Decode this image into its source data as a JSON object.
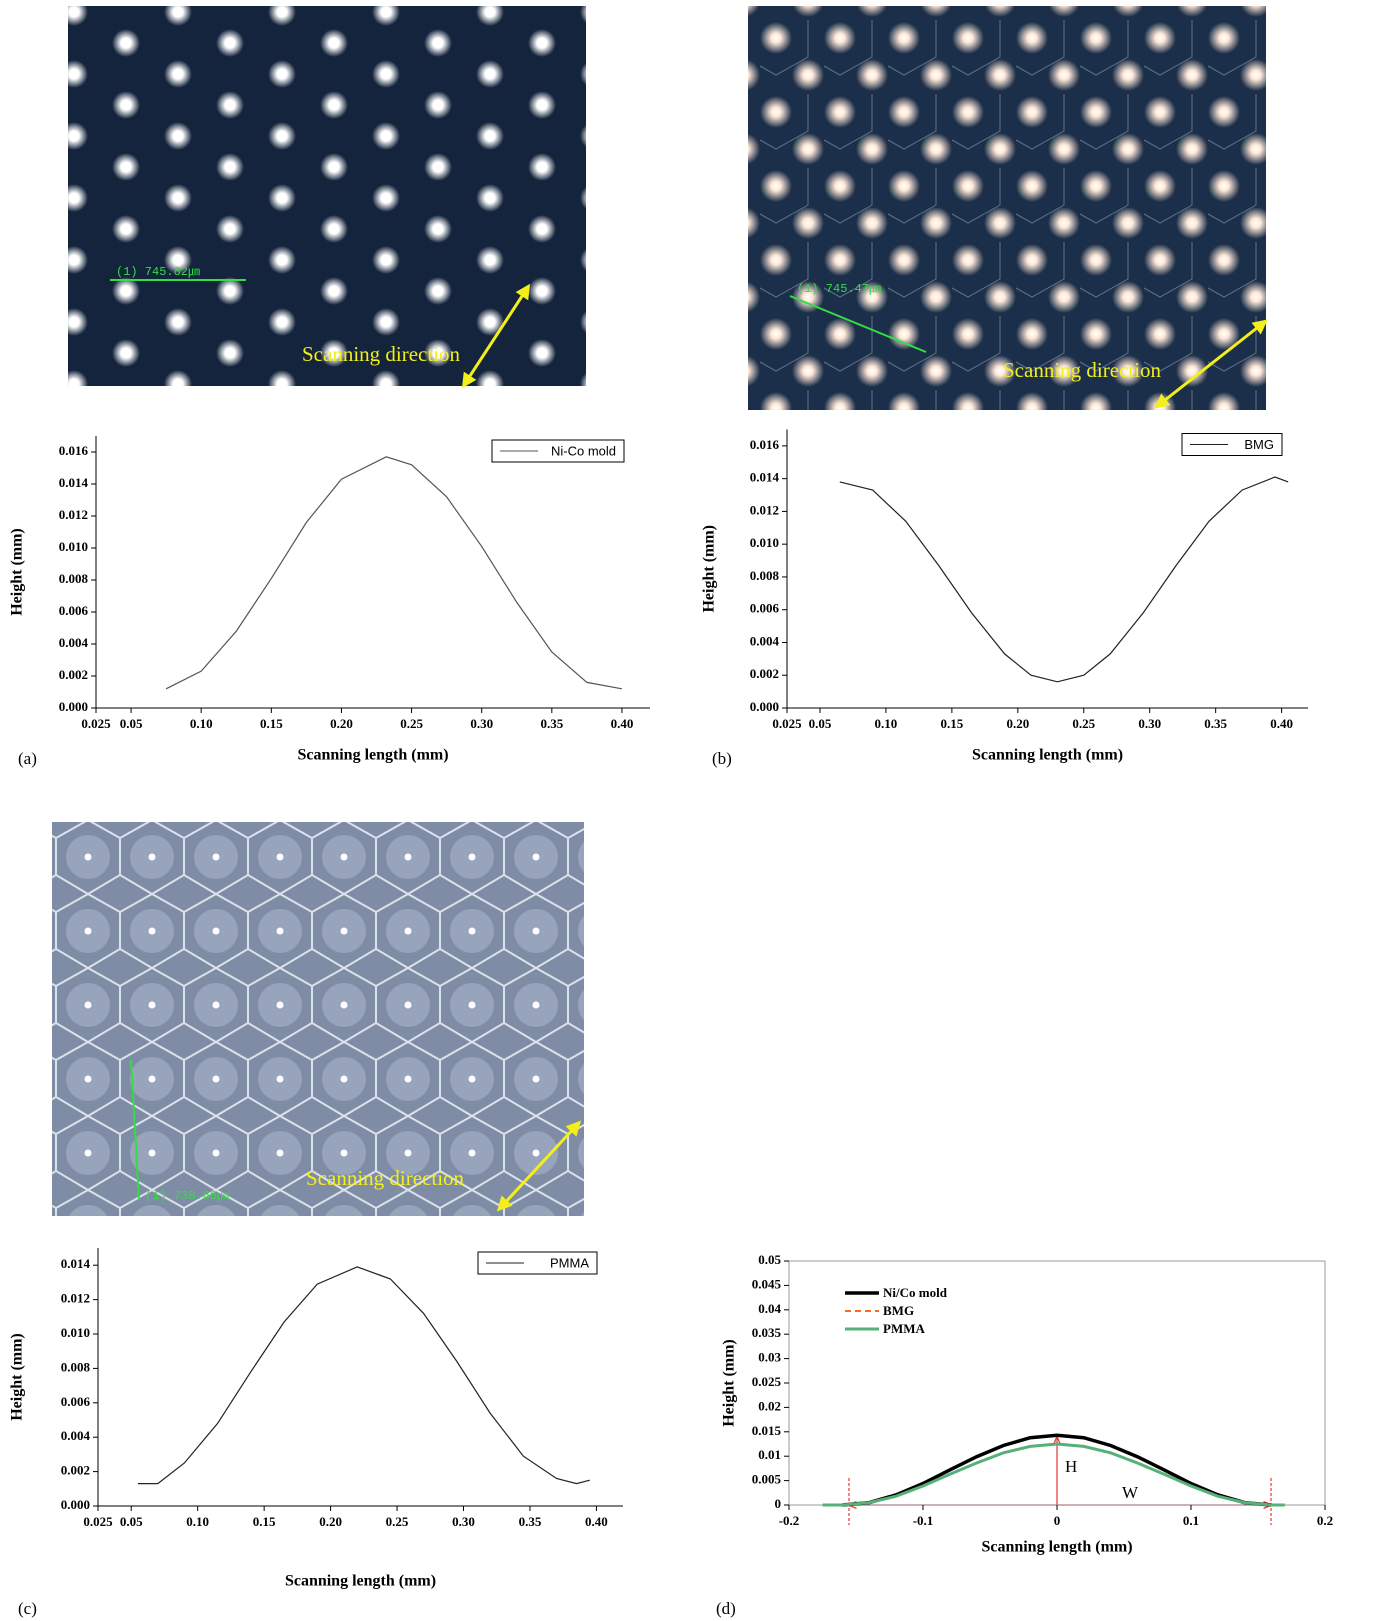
{
  "photos": [
    {
      "measure": "(1) 745.82㎛",
      "direction": "Scanning direction"
    },
    {
      "measure": "(1) 745.47㎛",
      "direction": "Scanning direction"
    },
    {
      "measure": "(1) 738.66㎛",
      "direction": "Scanning direction"
    }
  ],
  "chart_data": [
    {
      "type": "line",
      "panel_label": "(a)",
      "x_label": "Scanning length (mm)",
      "y_label": "Height (mm)",
      "xlim": [
        0.025,
        0.42
      ],
      "ylim": [
        0,
        0.017
      ],
      "legend": "top-right",
      "frame": false,
      "xticks": [
        0.025,
        0.05,
        {
          "value": 0.1,
          "label": "0.10"
        },
        0.15,
        {
          "value": 0.2,
          "label": "0.20"
        },
        0.25,
        {
          "value": 0.3,
          "label": "0.30"
        },
        0.35,
        {
          "value": 0.4,
          "label": "0.40"
        }
      ],
      "yticks": [
        {
          "value": 0,
          "label": "0.000"
        },
        {
          "value": 0.002,
          "label": "0.002"
        },
        {
          "value": 0.004,
          "label": "0.004"
        },
        {
          "value": 0.006,
          "label": "0.006"
        },
        {
          "value": 0.008,
          "label": "0.008"
        },
        {
          "value": 0.01,
          "label": "0.010"
        },
        {
          "value": 0.012,
          "label": "0.012"
        },
        {
          "value": 0.014,
          "label": "0.014"
        },
        {
          "value": 0.016,
          "label": "0.016"
        }
      ],
      "x": [
        0.075,
        0.1,
        0.125,
        0.15,
        0.175,
        0.2,
        0.232,
        0.25,
        0.275,
        0.3,
        0.325,
        0.35,
        0.375,
        0.4
      ],
      "series": [
        {
          "name": "Ni-Co mold",
          "color": "#555555",
          "values": [
            0.0012,
            0.0023,
            0.0048,
            0.0081,
            0.0116,
            0.0143,
            0.0157,
            0.0152,
            0.0132,
            0.0101,
            0.0066,
            0.0035,
            0.0016,
            0.0012
          ]
        }
      ]
    },
    {
      "type": "line",
      "panel_label": "(b)",
      "x_label": "Scanning length (mm)",
      "y_label": "Height (mm)",
      "xlim": [
        0.025,
        0.42
      ],
      "ylim": [
        0,
        0.017
      ],
      "legend": "top-right",
      "frame": false,
      "xticks": [
        0.025,
        0.05,
        {
          "value": 0.1,
          "label": "0.10"
        },
        0.15,
        {
          "value": 0.2,
          "label": "0.20"
        },
        0.25,
        {
          "value": 0.3,
          "label": "0.30"
        },
        0.35,
        {
          "value": 0.4,
          "label": "0.40"
        }
      ],
      "yticks": [
        {
          "value": 0,
          "label": "0.000"
        },
        {
          "value": 0.002,
          "label": "0.002"
        },
        {
          "value": 0.004,
          "label": "0.004"
        },
        {
          "value": 0.006,
          "label": "0.006"
        },
        {
          "value": 0.008,
          "label": "0.008"
        },
        {
          "value": 0.01,
          "label": "0.010"
        },
        {
          "value": 0.012,
          "label": "0.012"
        },
        {
          "value": 0.014,
          "label": "0.014"
        },
        {
          "value": 0.016,
          "label": "0.016"
        }
      ],
      "x": [
        0.065,
        0.09,
        0.115,
        0.14,
        0.165,
        0.19,
        0.21,
        0.23,
        0.25,
        0.27,
        0.295,
        0.32,
        0.345,
        0.37,
        0.395,
        0.405
      ],
      "series": [
        {
          "name": "BMG",
          "color": "#222222",
          "values": [
            0.0138,
            0.0133,
            0.0114,
            0.0087,
            0.0058,
            0.0033,
            0.002,
            0.0016,
            0.002,
            0.0033,
            0.0058,
            0.0087,
            0.0114,
            0.0133,
            0.0141,
            0.0138
          ]
        }
      ]
    },
    {
      "type": "line",
      "panel_label": "(c)",
      "x_label": "Scanning length (mm)",
      "y_label": "Height (mm)",
      "xlim": [
        0.025,
        0.42
      ],
      "ylim": [
        0,
        0.015
      ],
      "legend": "top-right",
      "frame": false,
      "xticks": [
        0.025,
        0.05,
        {
          "value": 0.1,
          "label": "0.10"
        },
        0.15,
        {
          "value": 0.2,
          "label": "0.20"
        },
        0.25,
        {
          "value": 0.3,
          "label": "0.30"
        },
        0.35,
        {
          "value": 0.4,
          "label": "0.40"
        }
      ],
      "yticks": [
        {
          "value": 0,
          "label": "0.000"
        },
        {
          "value": 0.002,
          "label": "0.002"
        },
        {
          "value": 0.004,
          "label": "0.004"
        },
        {
          "value": 0.006,
          "label": "0.006"
        },
        {
          "value": 0.008,
          "label": "0.008"
        },
        {
          "value": 0.01,
          "label": "0.010"
        },
        {
          "value": 0.012,
          "label": "0.012"
        },
        {
          "value": 0.014,
          "label": "0.014"
        }
      ],
      "x": [
        0.055,
        0.07,
        0.09,
        0.115,
        0.14,
        0.165,
        0.19,
        0.22,
        0.245,
        0.27,
        0.295,
        0.32,
        0.345,
        0.37,
        0.385,
        0.395
      ],
      "series": [
        {
          "name": "PMMA",
          "color": "#222222",
          "values": [
            0.0013,
            0.0013,
            0.0025,
            0.0048,
            0.0078,
            0.0107,
            0.0129,
            0.0139,
            0.0132,
            0.0112,
            0.0084,
            0.0054,
            0.0029,
            0.0016,
            0.0013,
            0.0015
          ]
        }
      ]
    },
    {
      "type": "line",
      "panel_label": "(d)",
      "x_label": "Scanning length (mm)",
      "y_label": "Height (mm)",
      "xlim": [
        -0.2,
        0.2
      ],
      "ylim": [
        0,
        0.05
      ],
      "legend": "top-left",
      "frame": true,
      "xticks": [
        -0.2,
        -0.1,
        0,
        0.1,
        0.2
      ],
      "yticks": [
        0,
        0.005,
        0.01,
        0.015,
        0.02,
        0.025,
        0.03,
        0.035,
        0.04,
        0.045,
        0.05
      ],
      "annotations": [
        "H",
        "W"
      ],
      "series": [
        {
          "name": "Ni/Co mold",
          "color": "#000000",
          "dash": false,
          "width": 3.5,
          "x": [
            -0.16,
            -0.14,
            -0.12,
            -0.1,
            -0.08,
            -0.06,
            -0.04,
            -0.02,
            0,
            0.02,
            0.04,
            0.06,
            0.08,
            0.1,
            0.12,
            0.14,
            0.16
          ],
          "values": [
            0,
            0.0005,
            0.0021,
            0.0044,
            0.0072,
            0.0099,
            0.0122,
            0.0138,
            0.0143,
            0.0138,
            0.0122,
            0.0099,
            0.0072,
            0.0044,
            0.0021,
            0.0005,
            0
          ]
        },
        {
          "name": "BMG",
          "color": "#f07020",
          "dash": true,
          "width": 2,
          "x": [
            -0.16,
            -0.14,
            -0.12,
            -0.1,
            -0.08,
            -0.06,
            -0.04,
            -0.02,
            0,
            0.02,
            0.04,
            0.06,
            0.08,
            0.1,
            0.12,
            0.14,
            0.16
          ],
          "values": [
            0,
            0.0005,
            0.0018,
            0.0039,
            0.0063,
            0.0086,
            0.0107,
            0.012,
            0.0125,
            0.012,
            0.0107,
            0.0086,
            0.0063,
            0.0039,
            0.0018,
            0.0005,
            0
          ]
        },
        {
          "name": "PMMA",
          "color": "#55b07a",
          "dash": false,
          "width": 3,
          "x": [
            -0.175,
            -0.16,
            -0.14,
            -0.12,
            -0.1,
            -0.08,
            -0.06,
            -0.04,
            -0.02,
            0,
            0.02,
            0.04,
            0.06,
            0.08,
            0.1,
            0.12,
            0.14,
            0.16,
            0.17
          ],
          "values": [
            0,
            0,
            0.0005,
            0.0018,
            0.0039,
            0.0063,
            0.0086,
            0.0107,
            0.012,
            0.0125,
            0.012,
            0.0107,
            0.0086,
            0.0063,
            0.0039,
            0.0018,
            0.0005,
            0,
            0
          ]
        }
      ]
    }
  ]
}
